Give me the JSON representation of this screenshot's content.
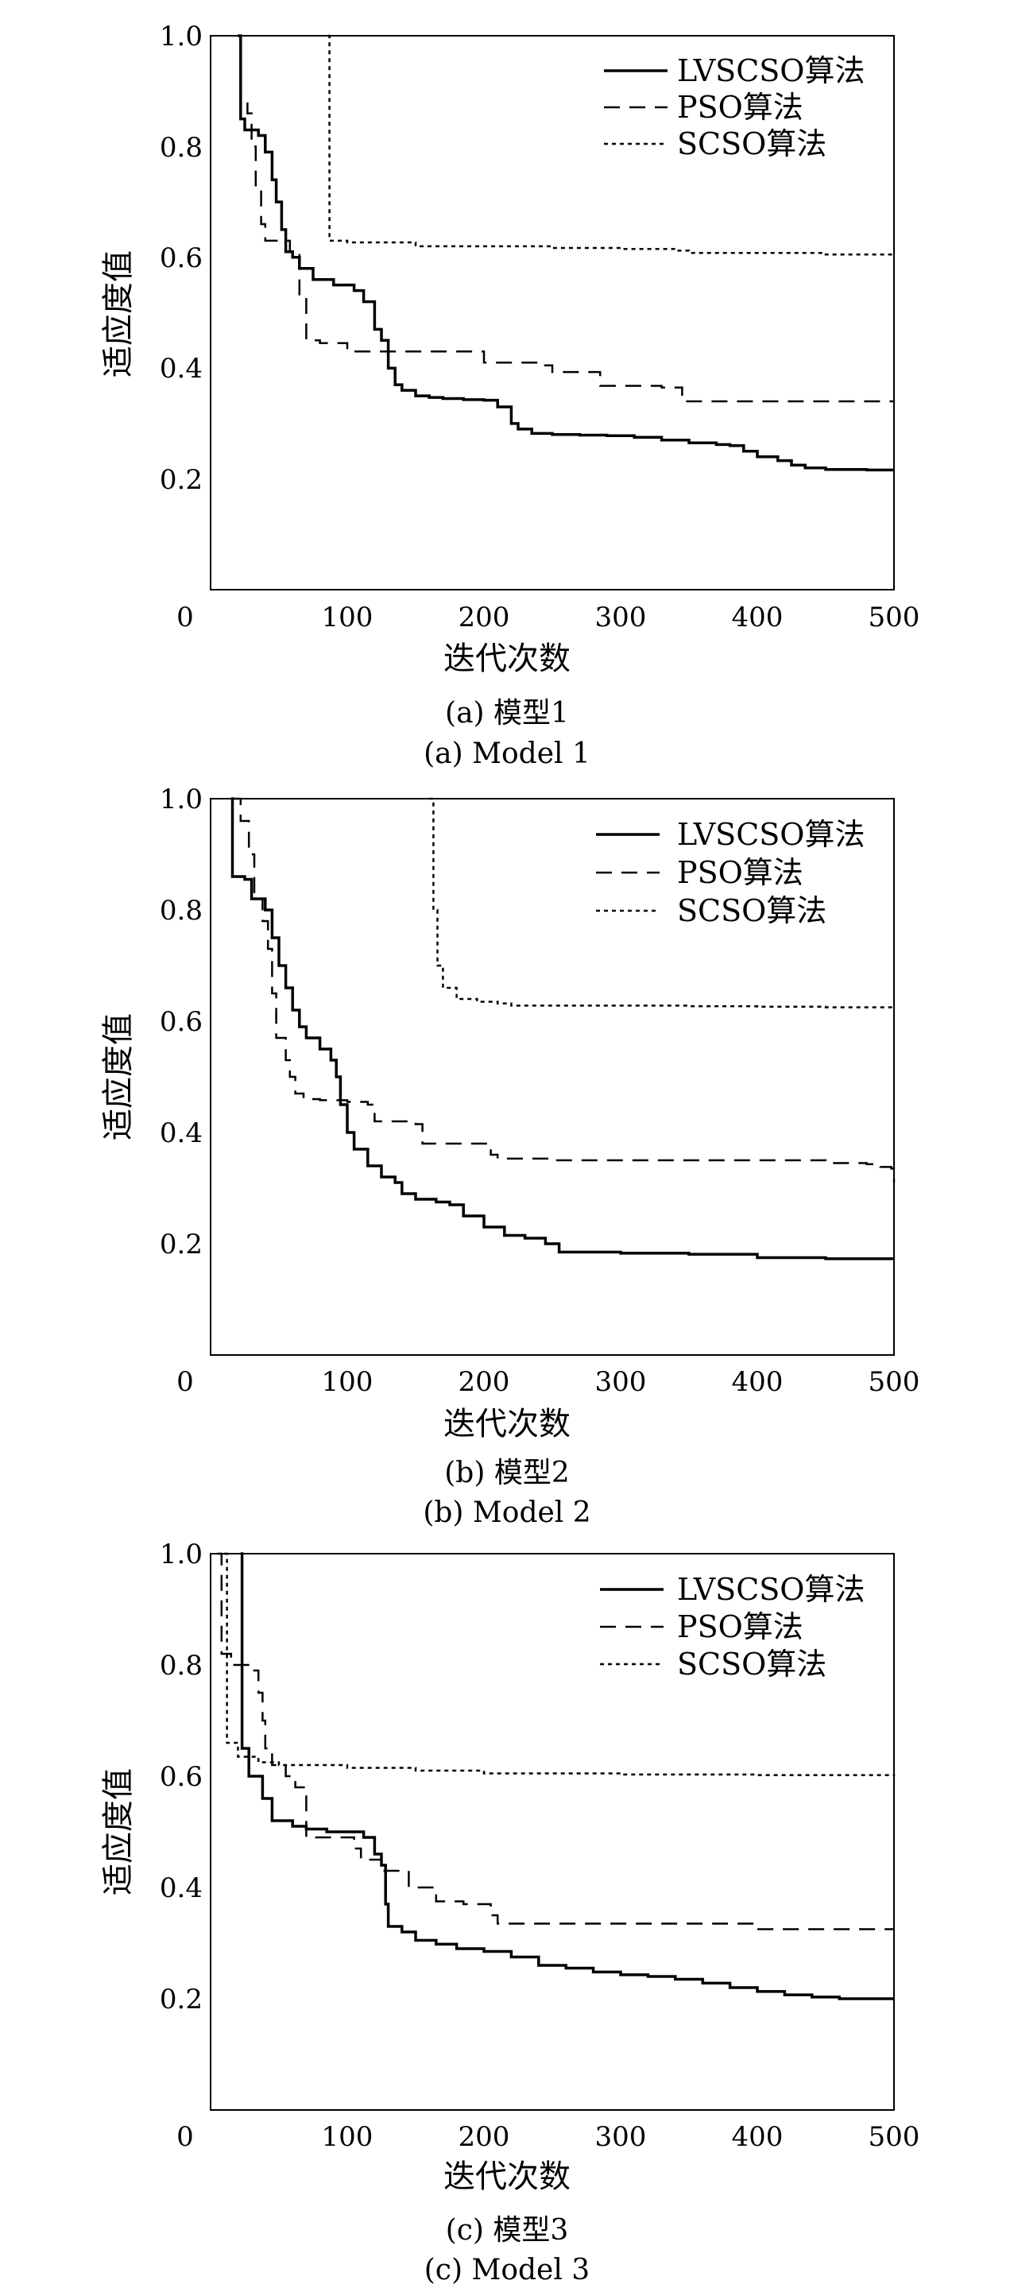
{
  "chart_data": [
    {
      "type": "line",
      "caption_cn": "(a) 模型1",
      "caption_en": "(a) Model 1",
      "xlabel": "迭代次数",
      "ylabel": "适应度值",
      "xlim": [
        0,
        500
      ],
      "ylim": [
        0,
        1.0
      ],
      "x_ticks": [
        "0",
        "100",
        "200",
        "300",
        "400",
        "500"
      ],
      "y_ticks": [
        "0.2",
        "0.4",
        "0.6",
        "0.8",
        "1.0"
      ],
      "legend_position": "top-right",
      "grid": false,
      "series": [
        {
          "name": "LVSCSO算法",
          "style": "solid",
          "points": [
            [
              20,
              1.0
            ],
            [
              22,
              0.85
            ],
            [
              25,
              0.83
            ],
            [
              28,
              0.83
            ],
            [
              35,
              0.82
            ],
            [
              40,
              0.79
            ],
            [
              45,
              0.74
            ],
            [
              48,
              0.7
            ],
            [
              52,
              0.65
            ],
            [
              55,
              0.61
            ],
            [
              60,
              0.6
            ],
            [
              65,
              0.58
            ],
            [
              75,
              0.56
            ],
            [
              90,
              0.55
            ],
            [
              105,
              0.54
            ],
            [
              112,
              0.52
            ],
            [
              120,
              0.47
            ],
            [
              125,
              0.45
            ],
            [
              130,
              0.4
            ],
            [
              135,
              0.37
            ],
            [
              140,
              0.36
            ],
            [
              150,
              0.35
            ],
            [
              160,
              0.347
            ],
            [
              170,
              0.345
            ],
            [
              185,
              0.343
            ],
            [
              200,
              0.342
            ],
            [
              210,
              0.33
            ],
            [
              220,
              0.3
            ],
            [
              225,
              0.29
            ],
            [
              235,
              0.282
            ],
            [
              250,
              0.28
            ],
            [
              270,
              0.279
            ],
            [
              290,
              0.278
            ],
            [
              310,
              0.275
            ],
            [
              330,
              0.27
            ],
            [
              350,
              0.265
            ],
            [
              370,
              0.262
            ],
            [
              380,
              0.26
            ],
            [
              390,
              0.25
            ],
            [
              400,
              0.24
            ],
            [
              415,
              0.233
            ],
            [
              425,
              0.225
            ],
            [
              435,
              0.22
            ],
            [
              450,
              0.217
            ],
            [
              480,
              0.216
            ],
            [
              500,
              0.216
            ]
          ]
        },
        {
          "name": "PSO算法",
          "style": "dashed",
          "points": [
            [
              20,
              1.0
            ],
            [
              22,
              0.88
            ],
            [
              27,
              0.86
            ],
            [
              30,
              0.8
            ],
            [
              33,
              0.73
            ],
            [
              37,
              0.66
            ],
            [
              40,
              0.63
            ],
            [
              48,
              0.63
            ],
            [
              58,
              0.61
            ],
            [
              65,
              0.53
            ],
            [
              70,
              0.45
            ],
            [
              80,
              0.445
            ],
            [
              100,
              0.43
            ],
            [
              140,
              0.43
            ],
            [
              180,
              0.43
            ],
            [
              195,
              0.43
            ],
            [
              200,
              0.41
            ],
            [
              240,
              0.405
            ],
            [
              250,
              0.393
            ],
            [
              280,
              0.393
            ],
            [
              285,
              0.368
            ],
            [
              330,
              0.365
            ],
            [
              345,
              0.34
            ],
            [
              400,
              0.34
            ],
            [
              450,
              0.34
            ],
            [
              500,
              0.34
            ]
          ]
        },
        {
          "name": "SCSO算法",
          "style": "dotted",
          "points": [
            [
              86,
              1.0
            ],
            [
              87,
              0.63
            ],
            [
              100,
              0.627
            ],
            [
              150,
              0.62
            ],
            [
              200,
              0.62
            ],
            [
              250,
              0.617
            ],
            [
              300,
              0.615
            ],
            [
              340,
              0.612
            ],
            [
              350,
              0.608
            ],
            [
              400,
              0.608
            ],
            [
              450,
              0.605
            ],
            [
              500,
              0.605
            ]
          ]
        }
      ]
    },
    {
      "type": "line",
      "caption_cn": "(b) 模型2",
      "caption_en": "(b) Model 2",
      "xlabel": "迭代次数",
      "ylabel": "适应度值",
      "xlim": [
        0,
        500
      ],
      "ylim": [
        0,
        1.0
      ],
      "x_ticks": [
        "0",
        "100",
        "200",
        "300",
        "400",
        "500"
      ],
      "y_ticks": [
        "0.2",
        "0.4",
        "0.6",
        "0.8",
        "1.0"
      ],
      "legend_position": "top-right",
      "grid": false,
      "series": [
        {
          "name": "LVSCSO算法",
          "style": "solid",
          "points": [
            [
              15,
              1.0
            ],
            [
              16,
              0.86
            ],
            [
              25,
              0.855
            ],
            [
              30,
              0.82
            ],
            [
              40,
              0.8
            ],
            [
              45,
              0.75
            ],
            [
              50,
              0.7
            ],
            [
              55,
              0.66
            ],
            [
              60,
              0.62
            ],
            [
              65,
              0.59
            ],
            [
              70,
              0.57
            ],
            [
              80,
              0.55
            ],
            [
              88,
              0.53
            ],
            [
              92,
              0.5
            ],
            [
              95,
              0.45
            ],
            [
              100,
              0.4
            ],
            [
              105,
              0.37
            ],
            [
              115,
              0.34
            ],
            [
              125,
              0.32
            ],
            [
              135,
              0.31
            ],
            [
              140,
              0.29
            ],
            [
              150,
              0.28
            ],
            [
              165,
              0.275
            ],
            [
              175,
              0.27
            ],
            [
              185,
              0.25
            ],
            [
              200,
              0.23
            ],
            [
              215,
              0.215
            ],
            [
              230,
              0.21
            ],
            [
              245,
              0.2
            ],
            [
              255,
              0.185
            ],
            [
              300,
              0.183
            ],
            [
              350,
              0.181
            ],
            [
              400,
              0.175
            ],
            [
              450,
              0.173
            ],
            [
              500,
              0.173
            ]
          ]
        },
        {
          "name": "PSO算法",
          "style": "dashed",
          "points": [
            [
              15,
              1.0
            ],
            [
              22,
              0.96
            ],
            [
              28,
              0.9
            ],
            [
              32,
              0.82
            ],
            [
              38,
              0.78
            ],
            [
              42,
              0.73
            ],
            [
              45,
              0.65
            ],
            [
              48,
              0.57
            ],
            [
              55,
              0.53
            ],
            [
              58,
              0.5
            ],
            [
              62,
              0.47
            ],
            [
              68,
              0.46
            ],
            [
              80,
              0.458
            ],
            [
              100,
              0.455
            ],
            [
              115,
              0.45
            ],
            [
              120,
              0.42
            ],
            [
              150,
              0.415
            ],
            [
              155,
              0.38
            ],
            [
              200,
              0.38
            ],
            [
              205,
              0.36
            ],
            [
              210,
              0.353
            ],
            [
              250,
              0.35
            ],
            [
              300,
              0.35
            ],
            [
              350,
              0.35
            ],
            [
              400,
              0.35
            ],
            [
              450,
              0.345
            ],
            [
              480,
              0.343
            ],
            [
              490,
              0.338
            ],
            [
              498,
              0.335
            ],
            [
              500,
              0.31
            ]
          ]
        },
        {
          "name": "SCSO算法",
          "style": "dotted",
          "points": [
            [
              160,
              1.0
            ],
            [
              163,
              0.8
            ],
            [
              166,
              0.7
            ],
            [
              170,
              0.66
            ],
            [
              180,
              0.64
            ],
            [
              195,
              0.635
            ],
            [
              210,
              0.632
            ],
            [
              220,
              0.628
            ],
            [
              250,
              0.628
            ],
            [
              300,
              0.628
            ],
            [
              350,
              0.627
            ],
            [
              400,
              0.626
            ],
            [
              450,
              0.625
            ],
            [
              500,
              0.625
            ]
          ]
        }
      ]
    },
    {
      "type": "line",
      "caption_cn": "(c) 模型3",
      "caption_en": "(c) Model 3",
      "xlabel": "迭代次数",
      "ylabel": "适应度值",
      "xlim": [
        0,
        500
      ],
      "ylim": [
        0,
        1.0
      ],
      "x_ticks": [
        "0",
        "100",
        "200",
        "300",
        "400",
        "500"
      ],
      "y_ticks": [
        "0.2",
        "0.4",
        "0.6",
        "0.8",
        "1.0"
      ],
      "legend_position": "top-right",
      "grid": false,
      "series": [
        {
          "name": "LVSCSO算法",
          "style": "solid",
          "points": [
            [
              22,
              1.0
            ],
            [
              23,
              0.65
            ],
            [
              28,
              0.6
            ],
            [
              38,
              0.56
            ],
            [
              45,
              0.52
            ],
            [
              60,
              0.51
            ],
            [
              70,
              0.505
            ],
            [
              85,
              0.5
            ],
            [
              100,
              0.5
            ],
            [
              112,
              0.49
            ],
            [
              120,
              0.46
            ],
            [
              125,
              0.44
            ],
            [
              128,
              0.37
            ],
            [
              130,
              0.33
            ],
            [
              140,
              0.32
            ],
            [
              150,
              0.305
            ],
            [
              165,
              0.298
            ],
            [
              180,
              0.29
            ],
            [
              200,
              0.285
            ],
            [
              220,
              0.275
            ],
            [
              240,
              0.26
            ],
            [
              260,
              0.255
            ],
            [
              280,
              0.248
            ],
            [
              300,
              0.243
            ],
            [
              320,
              0.24
            ],
            [
              340,
              0.235
            ],
            [
              360,
              0.228
            ],
            [
              380,
              0.22
            ],
            [
              400,
              0.213
            ],
            [
              420,
              0.207
            ],
            [
              440,
              0.203
            ],
            [
              460,
              0.2
            ],
            [
              480,
              0.2
            ],
            [
              500,
              0.2
            ]
          ]
        },
        {
          "name": "PSO算法",
          "style": "dashed",
          "points": [
            [
              5,
              1.0
            ],
            [
              8,
              0.82
            ],
            [
              15,
              0.8
            ],
            [
              30,
              0.79
            ],
            [
              35,
              0.75
            ],
            [
              38,
              0.7
            ],
            [
              40,
              0.65
            ],
            [
              45,
              0.62
            ],
            [
              55,
              0.6
            ],
            [
              62,
              0.58
            ],
            [
              70,
              0.49
            ],
            [
              100,
              0.49
            ],
            [
              105,
              0.47
            ],
            [
              110,
              0.45
            ],
            [
              118,
              0.45
            ],
            [
              125,
              0.43
            ],
            [
              145,
              0.4
            ],
            [
              160,
              0.4
            ],
            [
              165,
              0.375
            ],
            [
              185,
              0.37
            ],
            [
              200,
              0.37
            ],
            [
              205,
              0.35
            ],
            [
              210,
              0.335
            ],
            [
              250,
              0.335
            ],
            [
              300,
              0.335
            ],
            [
              350,
              0.335
            ],
            [
              390,
              0.335
            ],
            [
              400,
              0.325
            ],
            [
              450,
              0.325
            ],
            [
              500,
              0.325
            ]
          ]
        },
        {
          "name": "SCSO算法",
          "style": "dotted",
          "points": [
            [
              10,
              1.0
            ],
            [
              12,
              0.66
            ],
            [
              20,
              0.635
            ],
            [
              35,
              0.625
            ],
            [
              50,
              0.62
            ],
            [
              100,
              0.615
            ],
            [
              150,
              0.61
            ],
            [
              200,
              0.605
            ],
            [
              250,
              0.605
            ],
            [
              300,
              0.603
            ],
            [
              350,
              0.603
            ],
            [
              400,
              0.602
            ],
            [
              450,
              0.602
            ],
            [
              500,
              0.6
            ]
          ]
        }
      ]
    }
  ]
}
